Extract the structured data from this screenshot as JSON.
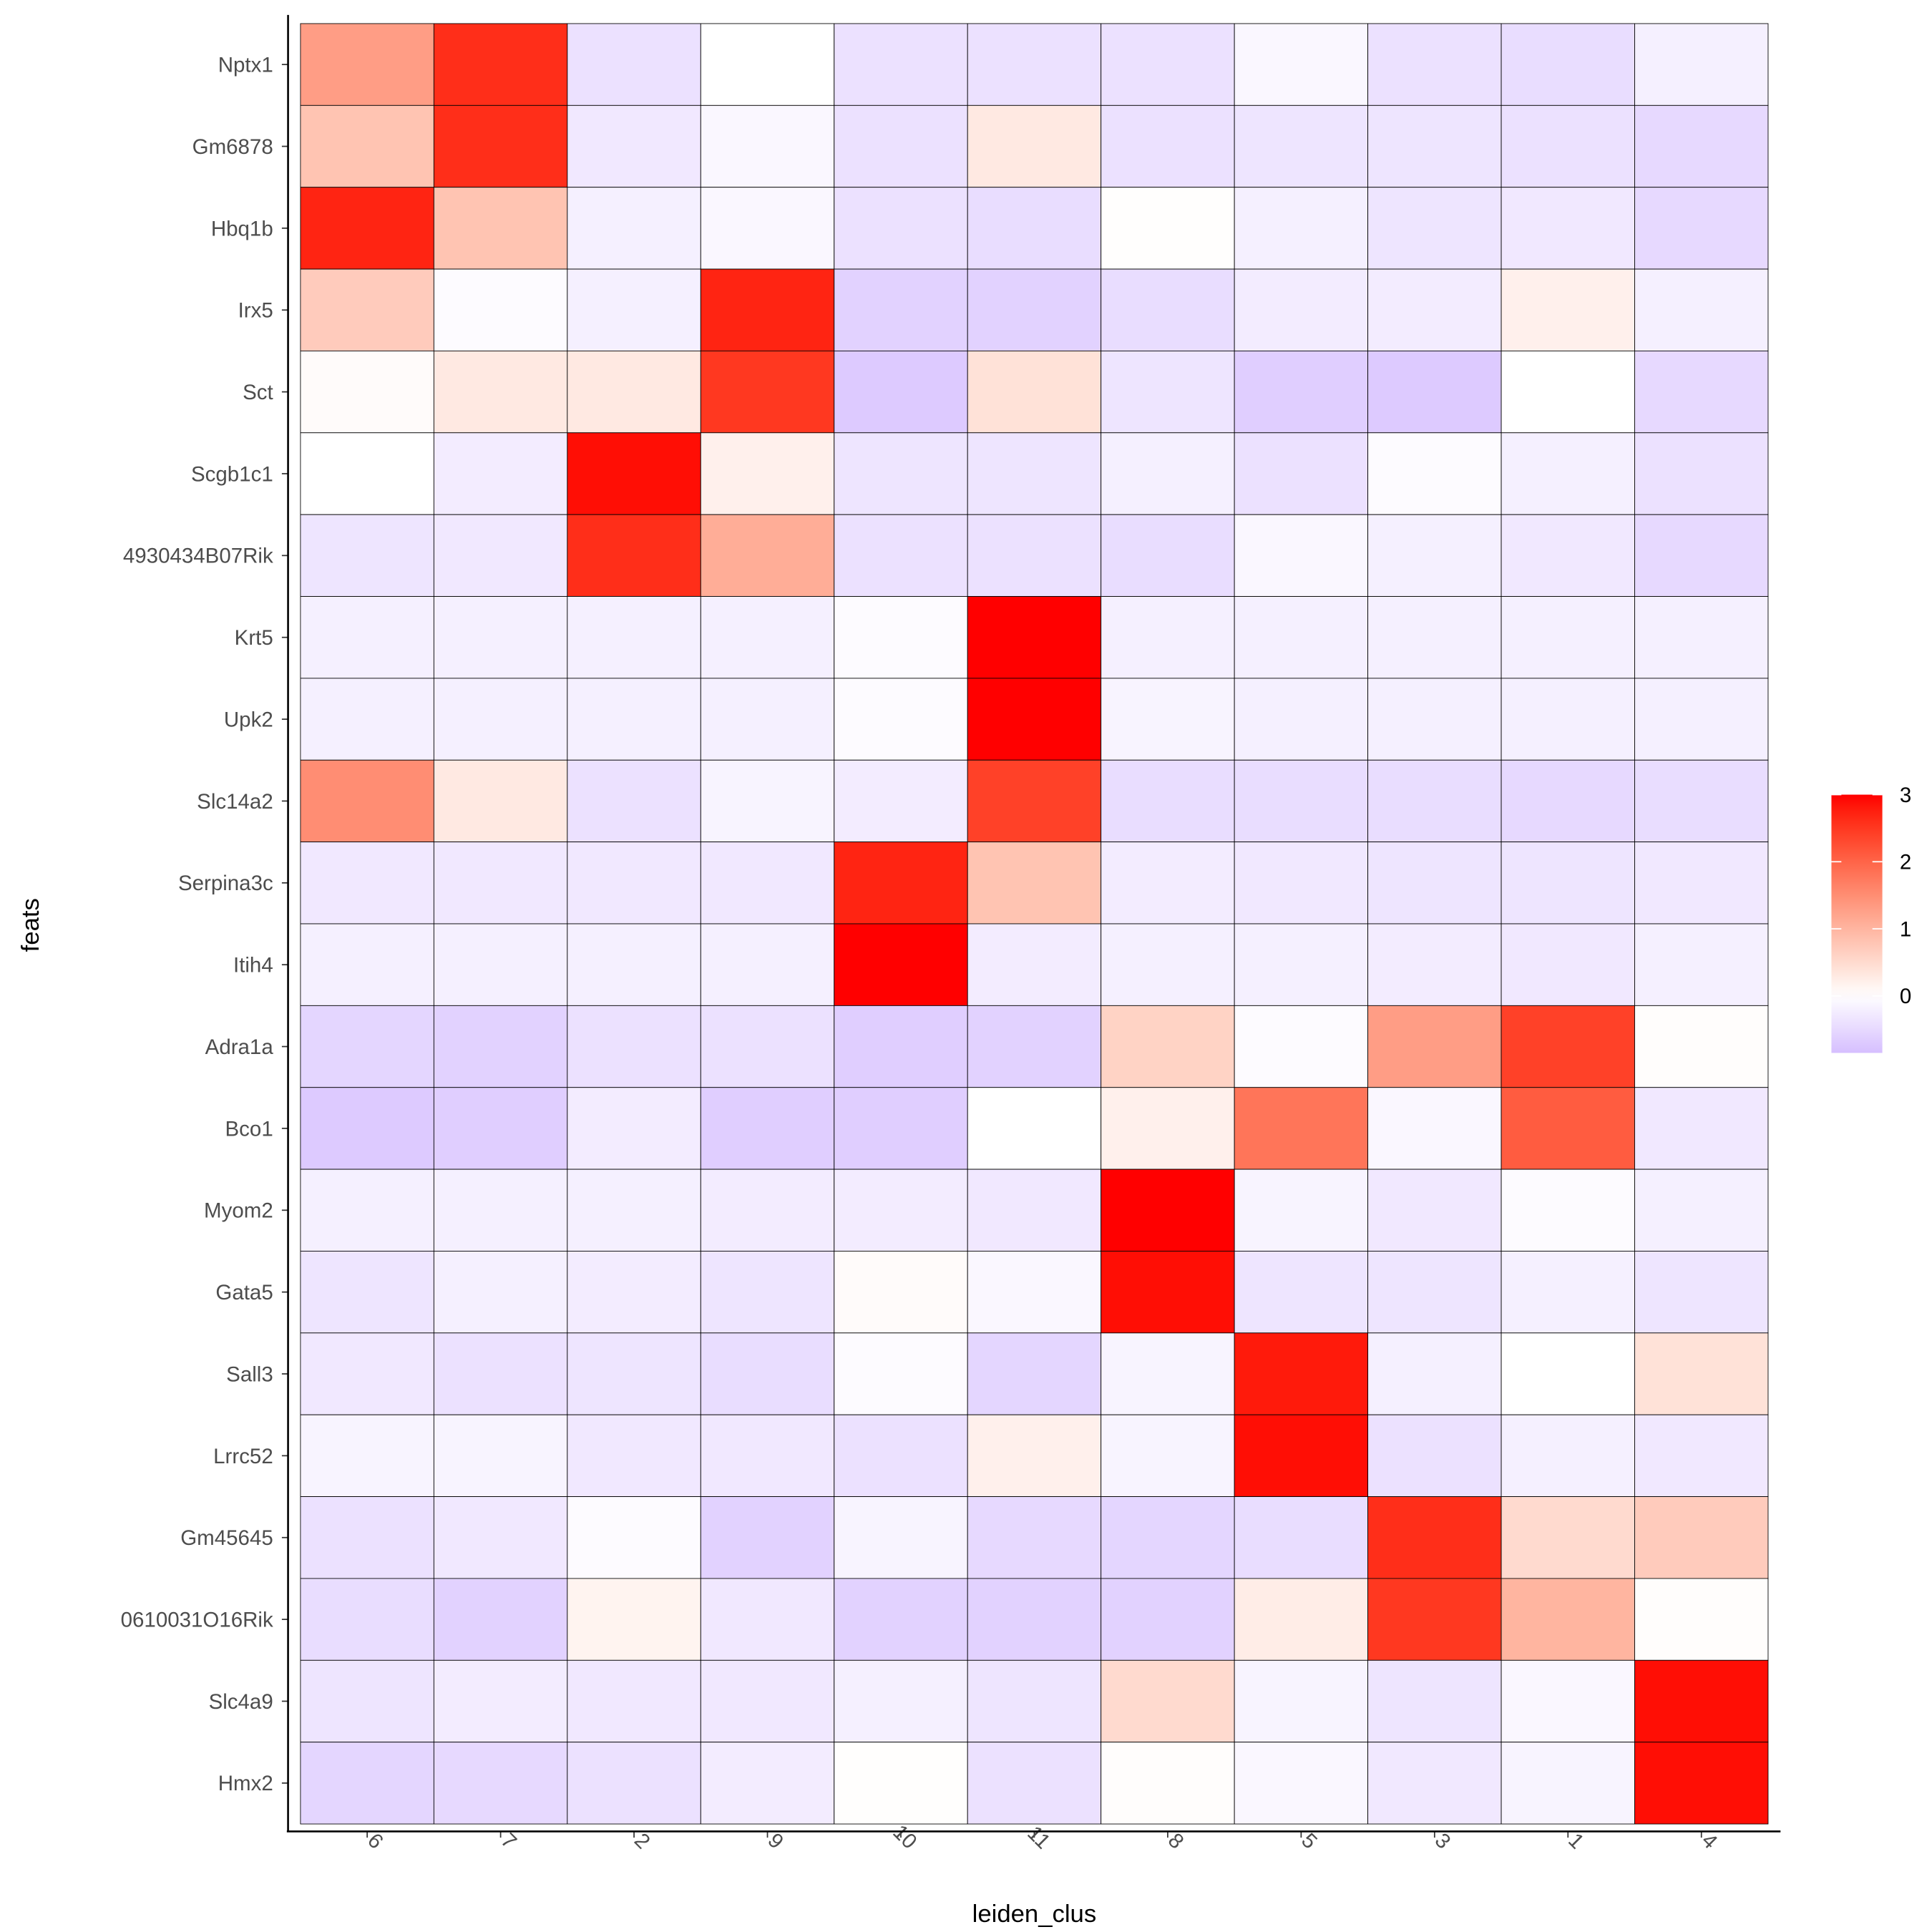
{
  "chart_data": {
    "type": "heatmap",
    "title": "",
    "xlabel": "leiden_clus",
    "ylabel": "feats",
    "x": [
      "6",
      "7",
      "2",
      "9",
      "10",
      "11",
      "8",
      "5",
      "3",
      "1",
      "4"
    ],
    "y": [
      "Nptx1",
      "Gm6878",
      "Hbq1b",
      "Irx5",
      "Sct",
      "Scgb1c1",
      "4930434B07Rik",
      "Krt5",
      "Upk2",
      "Slc14a2",
      "Serpina3c",
      "Itih4",
      "Adra1a",
      "Bco1",
      "Myom2",
      "Gata5",
      "Sall3",
      "Lrrc52",
      "Gm45645",
      "0610031O16Rik",
      "Slc4a9",
      "Hmx2"
    ],
    "values": [
      [
        1.3,
        2.6,
        -0.4,
        0,
        -0.4,
        -0.4,
        -0.4,
        -0.1,
        -0.4,
        -0.45,
        -0.2
      ],
      [
        0.8,
        2.6,
        -0.3,
        -0.1,
        -0.4,
        0.3,
        -0.4,
        -0.35,
        -0.35,
        -0.4,
        -0.5
      ],
      [
        2.7,
        0.8,
        -0.2,
        -0.1,
        -0.4,
        -0.45,
        0.02,
        -0.2,
        -0.35,
        -0.3,
        -0.5
      ],
      [
        0.7,
        -0.05,
        -0.2,
        2.7,
        -0.6,
        -0.6,
        -0.45,
        -0.25,
        -0.25,
        0.2,
        -0.2
      ],
      [
        0.05,
        0.3,
        0.3,
        2.5,
        -0.7,
        0.4,
        -0.35,
        -0.65,
        -0.7,
        0,
        -0.5
      ],
      [
        0,
        -0.25,
        2.9,
        0.2,
        -0.35,
        -0.35,
        -0.2,
        -0.4,
        -0.05,
        -0.2,
        -0.4
      ],
      [
        -0.35,
        -0.3,
        2.6,
        1.1,
        -0.4,
        -0.4,
        -0.45,
        -0.1,
        -0.2,
        -0.3,
        -0.5
      ],
      [
        -0.2,
        -0.2,
        -0.2,
        -0.2,
        -0.05,
        3,
        -0.2,
        -0.2,
        -0.2,
        -0.2,
        -0.2
      ],
      [
        -0.2,
        -0.2,
        -0.2,
        -0.2,
        -0.05,
        3,
        -0.15,
        -0.2,
        -0.2,
        -0.2,
        -0.2
      ],
      [
        1.5,
        0.3,
        -0.4,
        -0.15,
        -0.25,
        2.4,
        -0.45,
        -0.45,
        -0.45,
        -0.5,
        -0.45
      ],
      [
        -0.3,
        -0.3,
        -0.3,
        -0.3,
        2.7,
        0.8,
        -0.25,
        -0.3,
        -0.35,
        -0.35,
        -0.3
      ],
      [
        -0.2,
        -0.2,
        -0.2,
        -0.2,
        3,
        -0.25,
        -0.2,
        -0.2,
        -0.25,
        -0.3,
        -0.2
      ],
      [
        -0.55,
        -0.6,
        -0.4,
        -0.4,
        -0.65,
        -0.6,
        0.6,
        -0.05,
        1.3,
        2.4,
        0.03
      ],
      [
        -0.7,
        -0.65,
        -0.25,
        -0.65,
        -0.65,
        0,
        0.2,
        1.8,
        -0.1,
        2.1,
        -0.3
      ],
      [
        -0.2,
        -0.2,
        -0.2,
        -0.25,
        -0.25,
        -0.3,
        3,
        -0.15,
        -0.3,
        -0.05,
        -0.2
      ],
      [
        -0.35,
        -0.2,
        -0.25,
        -0.35,
        0.05,
        -0.1,
        2.9,
        -0.35,
        -0.35,
        -0.2,
        -0.35
      ],
      [
        -0.3,
        -0.4,
        -0.35,
        -0.45,
        -0.05,
        -0.55,
        -0.15,
        2.8,
        -0.2,
        0,
        0.4
      ],
      [
        -0.15,
        -0.15,
        -0.3,
        -0.3,
        -0.4,
        0.2,
        -0.15,
        2.9,
        -0.4,
        -0.2,
        -0.3
      ],
      [
        -0.4,
        -0.3,
        -0.05,
        -0.6,
        -0.15,
        -0.5,
        -0.55,
        -0.45,
        2.6,
        0.5,
        0.7
      ],
      [
        -0.45,
        -0.6,
        0.15,
        -0.3,
        -0.6,
        -0.6,
        -0.6,
        0.25,
        2.5,
        1.0,
        0.03
      ],
      [
        -0.35,
        -0.25,
        -0.3,
        -0.3,
        -0.2,
        -0.35,
        0.5,
        -0.15,
        -0.35,
        -0.1,
        2.9
      ],
      [
        -0.55,
        -0.5,
        -0.4,
        -0.25,
        0.02,
        -0.4,
        0.03,
        -0.1,
        -0.3,
        -0.15,
        2.9
      ]
    ],
    "colorbar": {
      "ticks": [
        "0",
        "1",
        "2",
        "3"
      ],
      "range": [
        -0.85,
        3
      ],
      "low_color": "#d6bfff",
      "mid_color": "#ffffff",
      "high_color": "#ff0000",
      "placement": "right"
    },
    "grid": false
  }
}
